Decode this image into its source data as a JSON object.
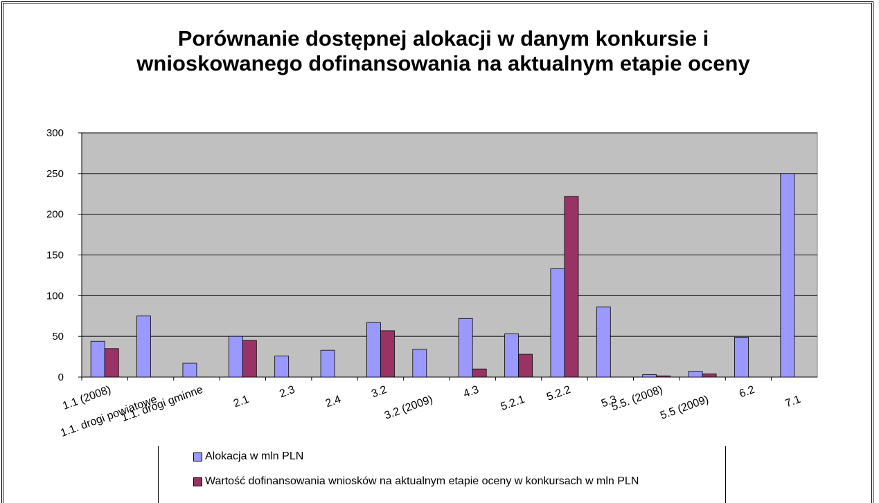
{
  "chart_data": {
    "type": "bar",
    "title": "Porównanie dostępnej alokacji w danym konkursie i wnioskowanego dofinansowania na aktualnym etapie oceny",
    "categories": [
      "1.1 (2008)",
      "1.1. drogi powiatowe",
      "1.1. drogi gminne",
      "2.1",
      "2.3",
      "2.4",
      "3.2",
      "3.2 (2009)",
      "4.3",
      "5.2.1",
      "5.2.2",
      "5.3",
      "5.5. (2008)",
      "5.5 (2009)",
      "6.2",
      "7.1"
    ],
    "series": [
      {
        "name": "Alokacja w mln PLN",
        "color": "#9999ff",
        "values": [
          44,
          75,
          17,
          50,
          26,
          33,
          67,
          34,
          72,
          53,
          133,
          86,
          3,
          7,
          49,
          250
        ]
      },
      {
        "name": "Wartość dofinansowania wniosków na aktualnym etapie oceny w konkursach w mln PLN",
        "color": "#993366",
        "values": [
          35,
          0,
          0,
          45,
          0,
          0,
          57,
          0,
          10,
          28,
          222,
          0,
          1.5,
          4,
          0,
          0
        ]
      }
    ],
    "ylim": [
      0,
      300
    ],
    "yticks": [
      0,
      50,
      100,
      150,
      200,
      250,
      300
    ],
    "grid": true,
    "plot_color": "#c0c0c0"
  }
}
